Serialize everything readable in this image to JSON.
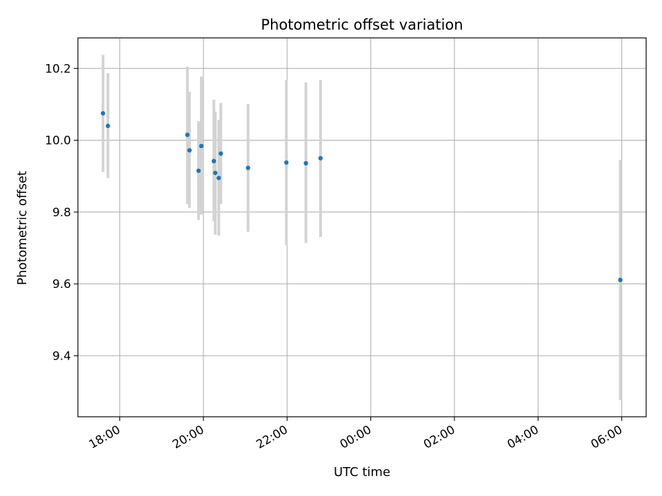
{
  "chart_data": {
    "type": "scatter",
    "title": "Photometric offset variation",
    "xlabel": "UTC time",
    "ylabel": "Photometric offset",
    "grid": true,
    "x_axis_format": "HH:MM",
    "xlim": [
      "17:00",
      "06:35"
    ],
    "ylim": [
      9.23,
      10.285
    ],
    "x_ticks": [
      "18:00",
      "20:00",
      "22:00",
      "00:00",
      "02:00",
      "04:00",
      "06:00"
    ],
    "y_ticks": [
      "9.4",
      "9.6",
      "9.8",
      "10.0",
      "10.2"
    ],
    "y_tick_values": [
      9.4,
      9.6,
      9.8,
      10.0,
      10.2
    ],
    "point_color": "#1f77b4",
    "errorbar_color": "#d3d3d3",
    "points": [
      {
        "x": "17:36",
        "y": 10.075,
        "err_low": 9.912,
        "err_high": 10.238
      },
      {
        "x": "17:43",
        "y": 10.04,
        "err_low": 9.895,
        "err_high": 10.187
      },
      {
        "x": "19:37",
        "y": 10.015,
        "err_low": 9.822,
        "err_high": 10.205
      },
      {
        "x": "19:40",
        "y": 9.972,
        "err_low": 9.811,
        "err_high": 10.135
      },
      {
        "x": "19:53",
        "y": 9.915,
        "err_low": 9.778,
        "err_high": 10.053
      },
      {
        "x": "19:57",
        "y": 9.984,
        "err_low": 9.793,
        "err_high": 10.177
      },
      {
        "x": "20:15",
        "y": 9.942,
        "err_low": 9.774,
        "err_high": 10.113
      },
      {
        "x": "20:17",
        "y": 9.909,
        "err_low": 9.737,
        "err_high": 10.08
      },
      {
        "x": "20:22",
        "y": 9.895,
        "err_low": 9.734,
        "err_high": 10.057
      },
      {
        "x": "20:25",
        "y": 9.963,
        "err_low": 9.822,
        "err_high": 10.104
      },
      {
        "x": "21:04",
        "y": 9.923,
        "err_low": 9.745,
        "err_high": 10.101
      },
      {
        "x": "21:59",
        "y": 9.938,
        "err_low": 9.708,
        "err_high": 10.168
      },
      {
        "x": "22:27",
        "y": 9.936,
        "err_low": 9.714,
        "err_high": 10.161
      },
      {
        "x": "22:48",
        "y": 9.95,
        "err_low": 9.731,
        "err_high": 10.168
      },
      {
        "x": "05:58",
        "y": 9.611,
        "err_low": 9.277,
        "err_high": 9.945
      }
    ]
  }
}
